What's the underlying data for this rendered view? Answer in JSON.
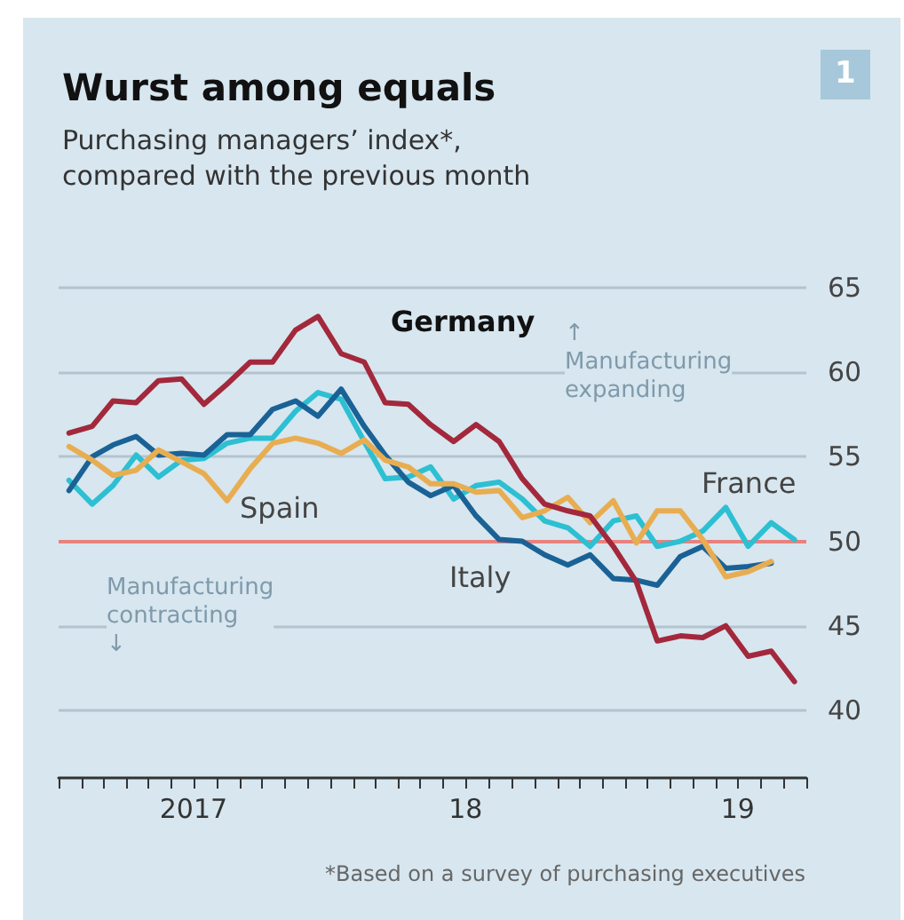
{
  "chart_data": {
    "type": "line",
    "title": "Wurst among equals",
    "subtitle": "Purchasing managers’ index*,\ncompared with the previous month",
    "x": [
      "2017-01-15",
      "2017-02-15",
      "2017-03-15",
      "2017-04-15",
      "2017-05-15",
      "2017-06-15",
      "2017-07-15",
      "2017-08-15",
      "2017-09-15",
      "2017-10-15",
      "2017-11-15",
      "2017-12-15",
      "2018-01-15",
      "2018-02-15",
      "2018-03-15",
      "2018-04-15",
      "2018-05-15",
      "2018-06-15",
      "2018-07-15",
      "2018-08-15",
      "2018-09-15",
      "2018-10-15",
      "2018-11-15",
      "2018-12-15",
      "2019-01-15",
      "2019-02-15",
      "2019-03-15",
      "2019-04-15",
      "2019-05-15",
      "2019-06-15",
      "2019-07-15",
      "2019-08-15",
      "2019-09-15"
    ],
    "series": [
      {
        "name": "Germany",
        "color": "#a3283c",
        "values": [
          56.4,
          56.8,
          58.3,
          58.2,
          59.5,
          59.6,
          58.1,
          59.3,
          60.6,
          60.6,
          62.5,
          63.3,
          61.1,
          60.6,
          58.2,
          58.1,
          56.9,
          55.9,
          56.9,
          55.9,
          53.7,
          52.2,
          51.8,
          51.5,
          49.7,
          47.6,
          44.1,
          44.4,
          44.3,
          45.0,
          43.2,
          43.5,
          41.7
        ]
      },
      {
        "name": "Spain",
        "color": "#e8ad50",
        "values": [
          55.6,
          54.8,
          53.9,
          54.2,
          55.4,
          54.7,
          54.0,
          52.4,
          54.3,
          55.8,
          56.1,
          55.8,
          55.2,
          56.0,
          54.8,
          54.4,
          53.4,
          53.4,
          52.9,
          53.0,
          51.4,
          51.8,
          52.6,
          51.1,
          52.4,
          49.9,
          51.8,
          51.8,
          50.1,
          47.9,
          48.2,
          48.8,
          null
        ]
      },
      {
        "name": "Italy",
        "color": "#1a6296",
        "values": [
          53.0,
          55.0,
          55.7,
          56.2,
          55.1,
          55.2,
          55.1,
          56.3,
          56.3,
          57.8,
          58.3,
          57.4,
          59.0,
          56.8,
          55.1,
          53.5,
          52.7,
          53.3,
          51.5,
          50.1,
          50.0,
          49.2,
          48.6,
          49.2,
          47.8,
          47.7,
          47.4,
          49.1,
          49.7,
          48.4,
          48.5,
          48.7,
          null
        ]
      },
      {
        "name": "France",
        "color": "#2dbfd2",
        "values": [
          53.6,
          52.2,
          53.3,
          55.1,
          53.8,
          54.8,
          54.9,
          55.8,
          56.1,
          56.1,
          57.7,
          58.8,
          58.4,
          55.9,
          53.7,
          53.8,
          54.4,
          52.5,
          53.3,
          53.5,
          52.5,
          51.2,
          50.8,
          49.7,
          51.2,
          51.5,
          49.7,
          50.0,
          50.6,
          52.0,
          49.7,
          51.1,
          50.1
        ]
      }
    ],
    "xlim": [
      "2017-01-01",
      "2019-10-01"
    ],
    "xticks": [
      {
        "value": "2017-01-01",
        "label": null
      },
      {
        "value": "2017-02-01",
        "label": null
      },
      {
        "value": "2017-03-01",
        "label": null
      },
      {
        "value": "2017-04-01",
        "label": null
      },
      {
        "value": "2017-05-01",
        "label": null
      },
      {
        "value": "2017-06-01",
        "label": null
      },
      {
        "value": "2017-07-01",
        "label": "2017"
      },
      {
        "value": "2017-08-01",
        "label": null
      },
      {
        "value": "2017-09-01",
        "label": null
      },
      {
        "value": "2017-10-01",
        "label": null
      },
      {
        "value": "2017-11-01",
        "label": null
      },
      {
        "value": "2017-12-01",
        "label": null
      },
      {
        "value": "2018-01-01",
        "label": null
      },
      {
        "value": "2018-02-01",
        "label": null
      },
      {
        "value": "2018-03-01",
        "label": null
      },
      {
        "value": "2018-04-01",
        "label": null
      },
      {
        "value": "2018-05-01",
        "label": null
      },
      {
        "value": "2018-06-01",
        "label": null
      },
      {
        "value": "2018-07-01",
        "label": "18"
      },
      {
        "value": "2018-08-01",
        "label": null
      },
      {
        "value": "2018-09-01",
        "label": null
      },
      {
        "value": "2018-10-01",
        "label": null
      },
      {
        "value": "2018-11-01",
        "label": null
      },
      {
        "value": "2018-12-01",
        "label": null
      },
      {
        "value": "2019-01-01",
        "label": null
      },
      {
        "value": "2019-02-01",
        "label": null
      },
      {
        "value": "2019-03-01",
        "label": null
      },
      {
        "value": "2019-04-01",
        "label": null
      },
      {
        "value": "2019-05-01",
        "label": null
      },
      {
        "value": "2019-06-01",
        "label": null
      },
      {
        "value": "2019-07-01",
        "label": "19"
      },
      {
        "value": "2019-08-01",
        "label": null
      },
      {
        "value": "2019-09-01",
        "label": null
      },
      {
        "value": "2019-10-01",
        "label": null
      }
    ],
    "ylim": [
      36,
      65
    ],
    "yticks": [
      40,
      45,
      50,
      55,
      60,
      65
    ],
    "grid": "y",
    "legend": false,
    "marker": "none",
    "line_style": "solid",
    "ref_lines": [
      {
        "axis": "y",
        "value": 50,
        "label": null,
        "color": "#e8827e"
      }
    ],
    "annotations": [
      "1",
      "↑\nManufacturing\nexpanding",
      "Manufacturing\ncontracting\n↓",
      "*Based on a survey of purchasing executives"
    ]
  }
}
